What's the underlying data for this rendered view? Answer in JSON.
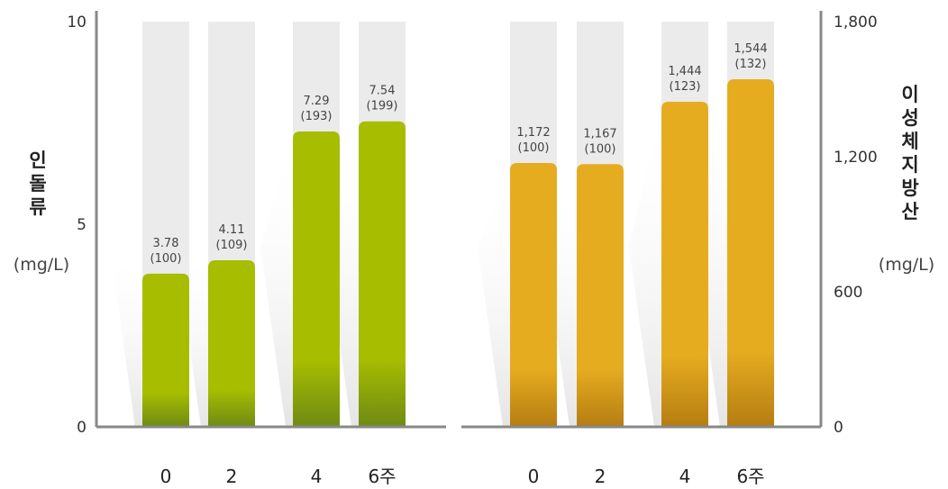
{
  "chart_data": [
    {
      "type": "bar",
      "categories": [
        "0",
        "2",
        "4",
        "6주"
      ],
      "values": [
        3.78,
        4.11,
        7.29,
        7.54
      ],
      "value_labels": [
        "3.78",
        "4.11",
        "7.29",
        "7.54"
      ],
      "index_labels": [
        "(100)",
        "(109)",
        "(193)",
        "(199)"
      ],
      "ylabel": "인돌류",
      "yunit": "(mg/L)",
      "ylim": [
        0,
        10
      ],
      "yticks": [
        "0",
        "5",
        "10"
      ],
      "axis_side": "left",
      "bar_color": "#a6bd00",
      "bar_bottom_color": "#6f8a14"
    },
    {
      "type": "bar",
      "categories": [
        "0",
        "2",
        "4",
        "6주"
      ],
      "values": [
        1172,
        1167,
        1444,
        1544
      ],
      "value_labels": [
        "1,172",
        "1,167",
        "1,444",
        "1,544"
      ],
      "index_labels": [
        "(100)",
        "(100)",
        "(123)",
        "(132)"
      ],
      "ylabel": "이성체지방산",
      "yunit": "(mg/L)",
      "ylim": [
        0,
        1800
      ],
      "yticks": [
        "0",
        "600",
        "1,200",
        "1,800"
      ],
      "axis_side": "right",
      "bar_color": "#e6ac20",
      "bar_bottom_color": "#b57d12"
    }
  ],
  "colors": {
    "track": "#ebebeb",
    "axis": "#888888"
  }
}
